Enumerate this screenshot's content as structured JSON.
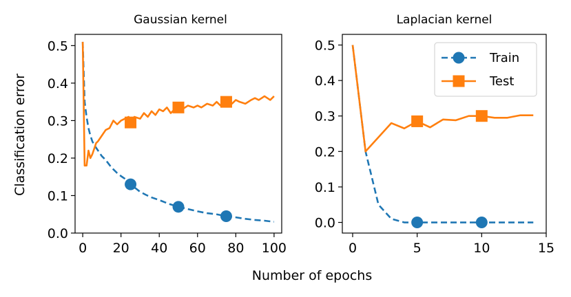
{
  "figure": {
    "shared_xlabel": "Number of epochs"
  },
  "colors": {
    "train": "#1f77b4",
    "test": "#ff7f0e"
  },
  "chart_data": [
    {
      "type": "line",
      "title": "Gaussian kernel",
      "xlabel": "",
      "ylabel": "Classification error",
      "xlim": [
        -4,
        104
      ],
      "ylim": [
        0.0,
        0.53
      ],
      "xticks": [
        0,
        20,
        40,
        60,
        80,
        100
      ],
      "xtick_labels": [
        "0",
        "20",
        "40",
        "60",
        "80",
        "100"
      ],
      "yticks": [
        0.0,
        0.1,
        0.2,
        0.3,
        0.4,
        0.5
      ],
      "ytick_labels": [
        "0.0",
        "0.1",
        "0.2",
        "0.3",
        "0.4",
        "0.5"
      ],
      "grid": false,
      "series": [
        {
          "name": "Train",
          "style": "dashed",
          "marker": "circle",
          "marker_x": [
            25,
            50,
            75
          ],
          "x": [
            0,
            1,
            2,
            3,
            4,
            5,
            6,
            8,
            10,
            12,
            15,
            18,
            20,
            22,
            25,
            28,
            30,
            33,
            36,
            40,
            45,
            50,
            55,
            60,
            65,
            70,
            75,
            80,
            85,
            90,
            95,
            100
          ],
          "y": [
            0.51,
            0.35,
            0.31,
            0.28,
            0.26,
            0.245,
            0.235,
            0.22,
            0.205,
            0.195,
            0.175,
            0.16,
            0.152,
            0.145,
            0.13,
            0.118,
            0.11,
            0.102,
            0.095,
            0.088,
            0.078,
            0.07,
            0.064,
            0.058,
            0.053,
            0.05,
            0.045,
            0.042,
            0.038,
            0.035,
            0.033,
            0.03
          ]
        },
        {
          "name": "Test",
          "style": "solid",
          "marker": "square",
          "marker_x": [
            25,
            50,
            75
          ],
          "x": [
            0,
            1,
            2,
            3,
            4,
            5,
            6,
            7,
            8,
            10,
            12,
            14,
            16,
            18,
            20,
            22,
            24,
            25,
            27,
            30,
            32,
            34,
            36,
            38,
            40,
            42,
            44,
            46,
            48,
            50,
            52,
            55,
            58,
            60,
            62,
            65,
            68,
            70,
            72,
            75,
            78,
            80,
            82,
            85,
            88,
            90,
            92,
            95,
            98,
            100
          ],
          "y": [
            0.51,
            0.18,
            0.18,
            0.22,
            0.2,
            0.21,
            0.225,
            0.24,
            0.245,
            0.26,
            0.275,
            0.28,
            0.3,
            0.29,
            0.3,
            0.305,
            0.31,
            0.295,
            0.31,
            0.305,
            0.32,
            0.31,
            0.325,
            0.315,
            0.33,
            0.325,
            0.335,
            0.32,
            0.33,
            0.335,
            0.33,
            0.34,
            0.335,
            0.34,
            0.335,
            0.345,
            0.34,
            0.35,
            0.34,
            0.35,
            0.345,
            0.355,
            0.35,
            0.345,
            0.355,
            0.36,
            0.355,
            0.365,
            0.355,
            0.365
          ]
        }
      ]
    },
    {
      "type": "line",
      "title": "Laplacian kernel",
      "xlabel": "",
      "ylabel": "",
      "xlim": [
        -0.8,
        15
      ],
      "ylim": [
        -0.03,
        0.53
      ],
      "xticks": [
        0,
        5,
        10,
        15
      ],
      "xtick_labels": [
        "0",
        "5",
        "10",
        "15"
      ],
      "yticks": [
        0.0,
        0.1,
        0.2,
        0.3,
        0.4,
        0.5
      ],
      "ytick_labels": [
        "0.0",
        "0.1",
        "0.2",
        "0.3",
        "0.4",
        "0.5"
      ],
      "grid": false,
      "legend": {
        "location": "upper right",
        "entries": [
          "Train",
          "Test"
        ]
      },
      "series": [
        {
          "name": "Train",
          "style": "dashed",
          "marker": "circle",
          "marker_x": [
            5,
            10
          ],
          "x": [
            0,
            1,
            2,
            3,
            4,
            5,
            6,
            7,
            8,
            9,
            10,
            11,
            12,
            13,
            14
          ],
          "y": [
            0.5,
            0.2,
            0.05,
            0.01,
            0.0,
            0.0,
            0.0,
            0.0,
            0.0,
            0.0,
            0.0,
            0.0,
            0.0,
            0.0,
            0.0
          ]
        },
        {
          "name": "Test",
          "style": "solid",
          "marker": "square",
          "marker_x": [
            5,
            10
          ],
          "x": [
            0,
            1,
            2,
            3,
            4,
            5,
            6,
            7,
            8,
            9,
            10,
            11,
            12,
            13,
            14
          ],
          "y": [
            0.5,
            0.2,
            0.24,
            0.28,
            0.265,
            0.285,
            0.268,
            0.29,
            0.288,
            0.3,
            0.3,
            0.295,
            0.295,
            0.302,
            0.302
          ]
        }
      ]
    }
  ]
}
